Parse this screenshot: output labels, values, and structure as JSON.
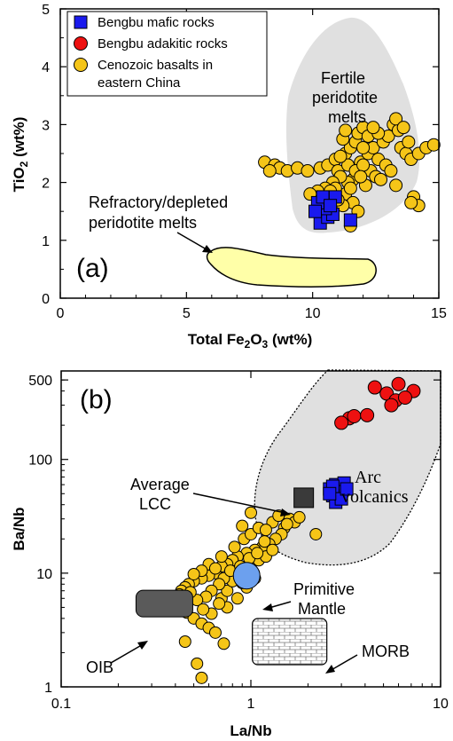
{
  "colors": {
    "mafic": "#1a1aee",
    "adakitic": "#ee1111",
    "basalt": "#f5c518",
    "field_gray": "#e0e0e0",
    "refractory_fill": "#ffffa8",
    "primitive_mantle": "#6ca0ee",
    "lcc_box": "#3a3a3a",
    "oib_box": "#5a5a5a"
  },
  "chart_data": [
    {
      "type": "scatter",
      "panel_label": "(a)",
      "xlabel": {
        "pre": "Total Fe",
        "sub1": "2",
        "mid": "O",
        "sub2": "3",
        "post": " (wt%)"
      },
      "ylabel": {
        "pre": "TiO",
        "sub": "2",
        "post": " (wt%)"
      },
      "xlim": [
        0,
        15
      ],
      "ylim": [
        0,
        5
      ],
      "xticks": [
        "0",
        "5",
        "10",
        "15"
      ],
      "yticks": [
        "0",
        "1",
        "2",
        "3",
        "4",
        "5"
      ],
      "legend_position": "top-left",
      "legend": [
        "Bengbu mafic rocks",
        "Bengbu adakitic rocks",
        "Cenozoic basalts in",
        "eastern China"
      ],
      "annotations": {
        "fertile": [
          "Fertile",
          "peridotite",
          "melts"
        ],
        "refractory": [
          "Refractory/depleted",
          "peridotite melts"
        ]
      },
      "series": [
        {
          "name": "Bengbu mafic rocks",
          "marker": "square",
          "color": "#1a1aee",
          "points": [
            [
              10.3,
              1.3
            ],
            [
              10.6,
              1.4
            ],
            [
              10.8,
              1.45
            ],
            [
              10.5,
              1.55
            ],
            [
              10.2,
              1.65
            ],
            [
              10.9,
              1.75
            ],
            [
              10.4,
              1.75
            ],
            [
              11.5,
              1.35
            ],
            [
              10.7,
              1.6
            ],
            [
              10.1,
              1.5
            ]
          ]
        },
        {
          "name": "Cenozoic basalts in eastern China",
          "marker": "circle",
          "color": "#f5c518",
          "points": [
            [
              8.1,
              2.35
            ],
            [
              8.5,
              2.3
            ],
            [
              8.7,
              2.25
            ],
            [
              9.0,
              2.2
            ],
            [
              9.4,
              2.25
            ],
            [
              9.8,
              2.2
            ],
            [
              8.3,
              2.2
            ],
            [
              10.3,
              2.25
            ],
            [
              10.6,
              2.3
            ],
            [
              10.9,
              2.4
            ],
            [
              11.0,
              2.2
            ],
            [
              11.3,
              2.5
            ],
            [
              11.5,
              2.6
            ],
            [
              11.7,
              2.7
            ],
            [
              11.8,
              2.85
            ],
            [
              12.0,
              2.95
            ],
            [
              11.2,
              2.75
            ],
            [
              11.9,
              2.35
            ],
            [
              12.2,
              2.5
            ],
            [
              12.4,
              2.6
            ],
            [
              12.6,
              2.4
            ],
            [
              12.8,
              2.7
            ],
            [
              13.0,
              2.8
            ],
            [
              13.2,
              3.0
            ],
            [
              13.4,
              2.9
            ],
            [
              13.5,
              2.6
            ],
            [
              13.7,
              2.5
            ],
            [
              13.9,
              2.4
            ],
            [
              14.2,
              2.5
            ],
            [
              14.5,
              2.6
            ],
            [
              14.8,
              2.65
            ],
            [
              13.3,
              3.1
            ],
            [
              13.6,
              2.95
            ],
            [
              12.3,
              2.2
            ],
            [
              12.5,
              2.1
            ],
            [
              12.1,
              1.95
            ],
            [
              11.6,
              2.05
            ],
            [
              11.4,
              2.0
            ],
            [
              11.1,
              2.1
            ],
            [
              10.8,
              2.0
            ],
            [
              10.5,
              1.9
            ],
            [
              10.2,
              1.85
            ],
            [
              9.9,
              1.8
            ],
            [
              11.3,
              1.8
            ],
            [
              11.6,
              1.65
            ],
            [
              11.8,
              1.5
            ],
            [
              11.5,
              1.9
            ],
            [
              11.2,
              1.6
            ],
            [
              11.0,
              1.7
            ],
            [
              10.9,
              1.9
            ],
            [
              12.9,
              2.3
            ],
            [
              13.1,
              2.2
            ],
            [
              13.3,
              1.95
            ],
            [
              12.7,
              2.05
            ],
            [
              11.4,
              2.3
            ],
            [
              11.7,
              2.2
            ],
            [
              12.0,
              2.3
            ],
            [
              11.9,
              2.1
            ],
            [
              12.2,
              2.8
            ],
            [
              12.6,
              2.85
            ],
            [
              11.1,
              2.45
            ],
            [
              14.0,
              1.75
            ],
            [
              14.2,
              1.6
            ],
            [
              13.9,
              1.65
            ],
            [
              10.7,
              1.85
            ],
            [
              11.5,
              1.25
            ],
            [
              11.3,
              2.9
            ],
            [
              12.4,
              2.95
            ],
            [
              13.8,
              2.7
            ],
            [
              12.0,
              2.6
            ]
          ]
        }
      ]
    },
    {
      "type": "scatter",
      "panel_label": "(b)",
      "xlabel": "La/Nb",
      "ylabel": "Ba/Nb",
      "xscale": "log",
      "yscale": "log",
      "xlim": [
        0.1,
        10
      ],
      "ylim": [
        1,
        600
      ],
      "xticks": [
        "0.1",
        "1",
        "10"
      ],
      "yticks": [
        "1",
        "10",
        "100",
        "500"
      ],
      "annotations": {
        "arc": [
          "Arc",
          "volcanics"
        ],
        "lcc": [
          "Average",
          "LCC"
        ],
        "pm": [
          "Primitive",
          "Mantle"
        ],
        "oib": "OIB",
        "morb": "MORB"
      },
      "reference_points": {
        "average_lcc": [
          1.9,
          46
        ],
        "primitive_mantle": [
          0.95,
          9.5
        ],
        "oib": [
          0.35,
          5.4
        ],
        "morb": [
          1.6,
          2.5
        ]
      },
      "series": [
        {
          "name": "Bengbu adakitic rocks",
          "marker": "circle",
          "color": "#ee1111",
          "points": [
            [
              4.5,
              430
            ],
            [
              5.2,
              380
            ],
            [
              6.0,
              460
            ],
            [
              7.2,
              400
            ],
            [
              5.8,
              330
            ],
            [
              5.5,
              300
            ],
            [
              6.5,
              350
            ],
            [
              3.3,
              230
            ],
            [
              3.0,
              210
            ],
            [
              3.5,
              240
            ],
            [
              4.1,
              245
            ]
          ]
        },
        {
          "name": "Bengbu mafic rocks",
          "marker": "square",
          "color": "#1a1aee",
          "points": [
            [
              2.6,
              55
            ],
            [
              2.8,
              60
            ],
            [
              3.1,
              62
            ],
            [
              2.9,
              52
            ],
            [
              2.7,
              48
            ],
            [
              2.8,
              42
            ],
            [
              3.0,
              45
            ],
            [
              2.7,
              58
            ],
            [
              3.2,
              55
            ],
            [
              2.6,
              50
            ]
          ]
        },
        {
          "name": "Cenozoic basalts in eastern China",
          "marker": "circle",
          "color": "#f5c518",
          "points": [
            [
              1.6,
              30
            ],
            [
              1.7,
              28
            ],
            [
              1.8,
              31
            ],
            [
              1.5,
              25
            ],
            [
              1.45,
              22
            ],
            [
              1.55,
              27
            ],
            [
              1.35,
              20
            ],
            [
              1.25,
              18
            ],
            [
              1.15,
              17
            ],
            [
              1.05,
              16
            ],
            [
              0.95,
              15
            ],
            [
              0.85,
              14
            ],
            [
              0.8,
              13
            ],
            [
              0.75,
              12
            ],
            [
              0.7,
              11.5
            ],
            [
              0.65,
              10
            ],
            [
              0.6,
              9.5
            ],
            [
              0.55,
              9
            ],
            [
              0.5,
              8.5
            ],
            [
              0.47,
              8
            ],
            [
              0.45,
              7.5
            ],
            [
              0.43,
              7
            ],
            [
              0.42,
              6.5
            ],
            [
              0.41,
              6
            ],
            [
              0.42,
              5.5
            ],
            [
              0.44,
              5
            ],
            [
              0.46,
              4.5
            ],
            [
              0.5,
              4
            ],
            [
              0.55,
              3.6
            ],
            [
              0.6,
              3.3
            ],
            [
              0.65,
              3.0
            ],
            [
              0.7,
              6
            ],
            [
              0.75,
              7
            ],
            [
              0.8,
              8.5
            ],
            [
              0.9,
              10
            ],
            [
              1.0,
              12
            ],
            [
              1.1,
              13
            ],
            [
              1.2,
              14
            ],
            [
              1.3,
              16
            ],
            [
              0.72,
              9
            ],
            [
              0.68,
              8
            ],
            [
              0.62,
              7
            ],
            [
              0.58,
              6.2
            ],
            [
              0.52,
              5.8
            ],
            [
              0.48,
              6.8
            ],
            [
              0.78,
              10.5
            ],
            [
              0.88,
              11.5
            ],
            [
              0.98,
              13.5
            ],
            [
              1.08,
              15
            ],
            [
              1.18,
              19
            ],
            [
              0.6,
              12
            ],
            [
              0.7,
              14
            ],
            [
              0.82,
              17
            ],
            [
              0.92,
              20
            ],
            [
              1.0,
              22
            ],
            [
              1.1,
              25
            ],
            [
              1.3,
              28
            ],
            [
              0.55,
              10.5
            ],
            [
              0.65,
              11
            ],
            [
              0.5,
              9.8
            ],
            [
              0.75,
              5
            ],
            [
              0.85,
              6
            ],
            [
              0.95,
              7.5
            ],
            [
              1.05,
              9
            ],
            [
              0.62,
              4.4
            ],
            [
              0.56,
              4.8
            ],
            [
              0.68,
              5.4
            ],
            [
              0.9,
              8.2
            ],
            [
              2.2,
              22
            ],
            [
              0.45,
              2.5
            ],
            [
              0.52,
              1.6
            ],
            [
              0.55,
              1.2
            ],
            [
              1.0,
              34
            ],
            [
              1.2,
              24
            ],
            [
              1.4,
              32
            ],
            [
              0.9,
              26
            ],
            [
              0.72,
              2.4
            ]
          ]
        }
      ]
    }
  ]
}
